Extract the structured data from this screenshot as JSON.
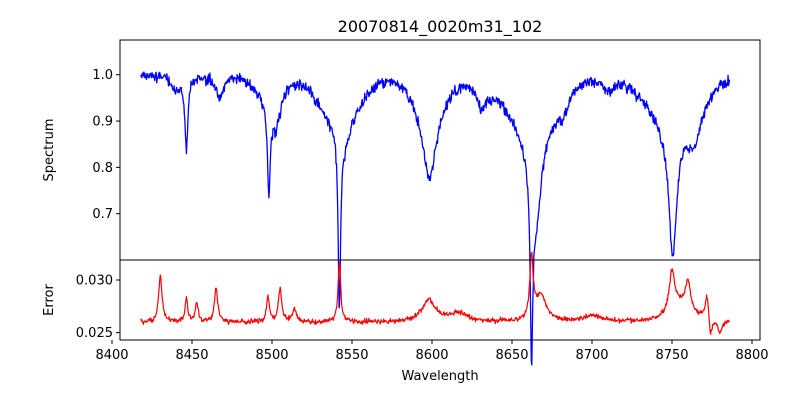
{
  "chart_data": [
    {
      "type": "line",
      "title": "20070814_0020m31_102",
      "xlabel": "",
      "ylabel": "Spectrum",
      "xlim": [
        8405,
        8805
      ],
      "ylim": [
        0.6,
        1.075
      ],
      "yticks": [
        "0.7",
        "0.8",
        "0.9",
        "1.0"
      ],
      "ytick_values": [
        0.7,
        0.8,
        0.9,
        1.0
      ],
      "grid": false,
      "color": "#0000ff",
      "continuum": {
        "x": [
          8418,
          8786
        ],
        "y": [
          1.0,
          1.0
        ]
      },
      "noise_amplitude": 0.018,
      "absorption_lines": [
        {
          "center": 8446.5,
          "depth": 0.15,
          "width": 1.2
        },
        {
          "center": 8498.0,
          "depth": 0.19,
          "width": 1.0
        },
        {
          "center": 8542.1,
          "depth": 0.38,
          "width": 0.9
        },
        {
          "center": 8662.2,
          "depth": 0.38,
          "width": 1.0
        },
        {
          "center": 8598.4,
          "depth": 0.16,
          "width": 5.0
        },
        {
          "center": 8750.5,
          "depth": 0.28,
          "width": 3.0
        },
        {
          "center": 8665.0,
          "depth": 0.18,
          "width": 4.0
        },
        {
          "center": 8467.3,
          "depth": 0.05,
          "width": 3.0
        },
        {
          "center": 8502.5,
          "depth": 0.07,
          "width": 3.0
        },
        {
          "center": 8545.4,
          "depth": 0.05,
          "width": 4.0
        },
        {
          "center": 8631.0,
          "depth": 0.06,
          "width": 4.0
        },
        {
          "center": 8682.0,
          "depth": 0.04,
          "width": 4.0
        },
        {
          "center": 8764.0,
          "depth": 0.08,
          "width": 5.0
        },
        {
          "center": 8440.0,
          "depth": 0.03,
          "width": 3.0
        },
        {
          "center": 8710.0,
          "depth": 0.03,
          "width": 4.0
        }
      ],
      "wings": [
        {
          "center": 8542.1,
          "depth": 0.1,
          "width": 12.0
        },
        {
          "center": 8662.2,
          "depth": 0.12,
          "width": 14.0
        },
        {
          "center": 8750.5,
          "depth": 0.1,
          "width": 15.0
        },
        {
          "center": 8598.4,
          "depth": 0.06,
          "width": 10.0
        },
        {
          "center": 8498.0,
          "depth": 0.05,
          "width": 8.0
        }
      ]
    },
    {
      "type": "line",
      "title": "",
      "xlabel": "Wavelength",
      "ylabel": "Error",
      "xlim": [
        8405,
        8805
      ],
      "ylim": [
        0.0243,
        0.0319
      ],
      "yticks": [
        "0.025",
        "0.030"
      ],
      "ytick_values": [
        0.025,
        0.03
      ],
      "xticks": [
        "8400",
        "8450",
        "8500",
        "8550",
        "8600",
        "8650",
        "8700",
        "8750",
        "8800"
      ],
      "xtick_values": [
        8400,
        8450,
        8500,
        8550,
        8600,
        8650,
        8700,
        8750,
        8800
      ],
      "grid": false,
      "color": "#ff0000",
      "baseline": 0.026,
      "noise_amplitude": 0.00035,
      "peaks": [
        {
          "center": 8430.2,
          "height": 0.0045,
          "width": 1.2
        },
        {
          "center": 8542.1,
          "height": 0.0058,
          "width": 1.0
        },
        {
          "center": 8662.2,
          "height": 0.0058,
          "width": 1.2
        },
        {
          "center": 8598.0,
          "height": 0.0021,
          "width": 5.0
        },
        {
          "center": 8750.0,
          "height": 0.0039,
          "width": 2.0
        },
        {
          "center": 8760.0,
          "height": 0.0028,
          "width": 2.0
        },
        {
          "center": 8772.0,
          "height": 0.0026,
          "width": 1.5
        },
        {
          "center": 8446.5,
          "height": 0.0022,
          "width": 1.0
        },
        {
          "center": 8453.0,
          "height": 0.0019,
          "width": 1.0
        },
        {
          "center": 8465.0,
          "height": 0.0032,
          "width": 1.2
        },
        {
          "center": 8497.5,
          "height": 0.0025,
          "width": 1.0
        },
        {
          "center": 8505.0,
          "height": 0.0032,
          "width": 1.2
        },
        {
          "center": 8514.0,
          "height": 0.0012,
          "width": 1.5
        },
        {
          "center": 8668.0,
          "height": 0.0025,
          "width": 4.0
        },
        {
          "center": 8755.0,
          "height": 0.0015,
          "width": 8.0
        },
        {
          "center": 8617.0,
          "height": 0.0008,
          "width": 6.0
        },
        {
          "center": 8700.0,
          "height": 0.0006,
          "width": 6.0
        }
      ],
      "dips": [
        {
          "center": 8774.0,
          "depth": 0.0022,
          "width": 1.2
        },
        {
          "center": 8780.0,
          "depth": 0.0012,
          "width": 1.5
        }
      ]
    }
  ]
}
